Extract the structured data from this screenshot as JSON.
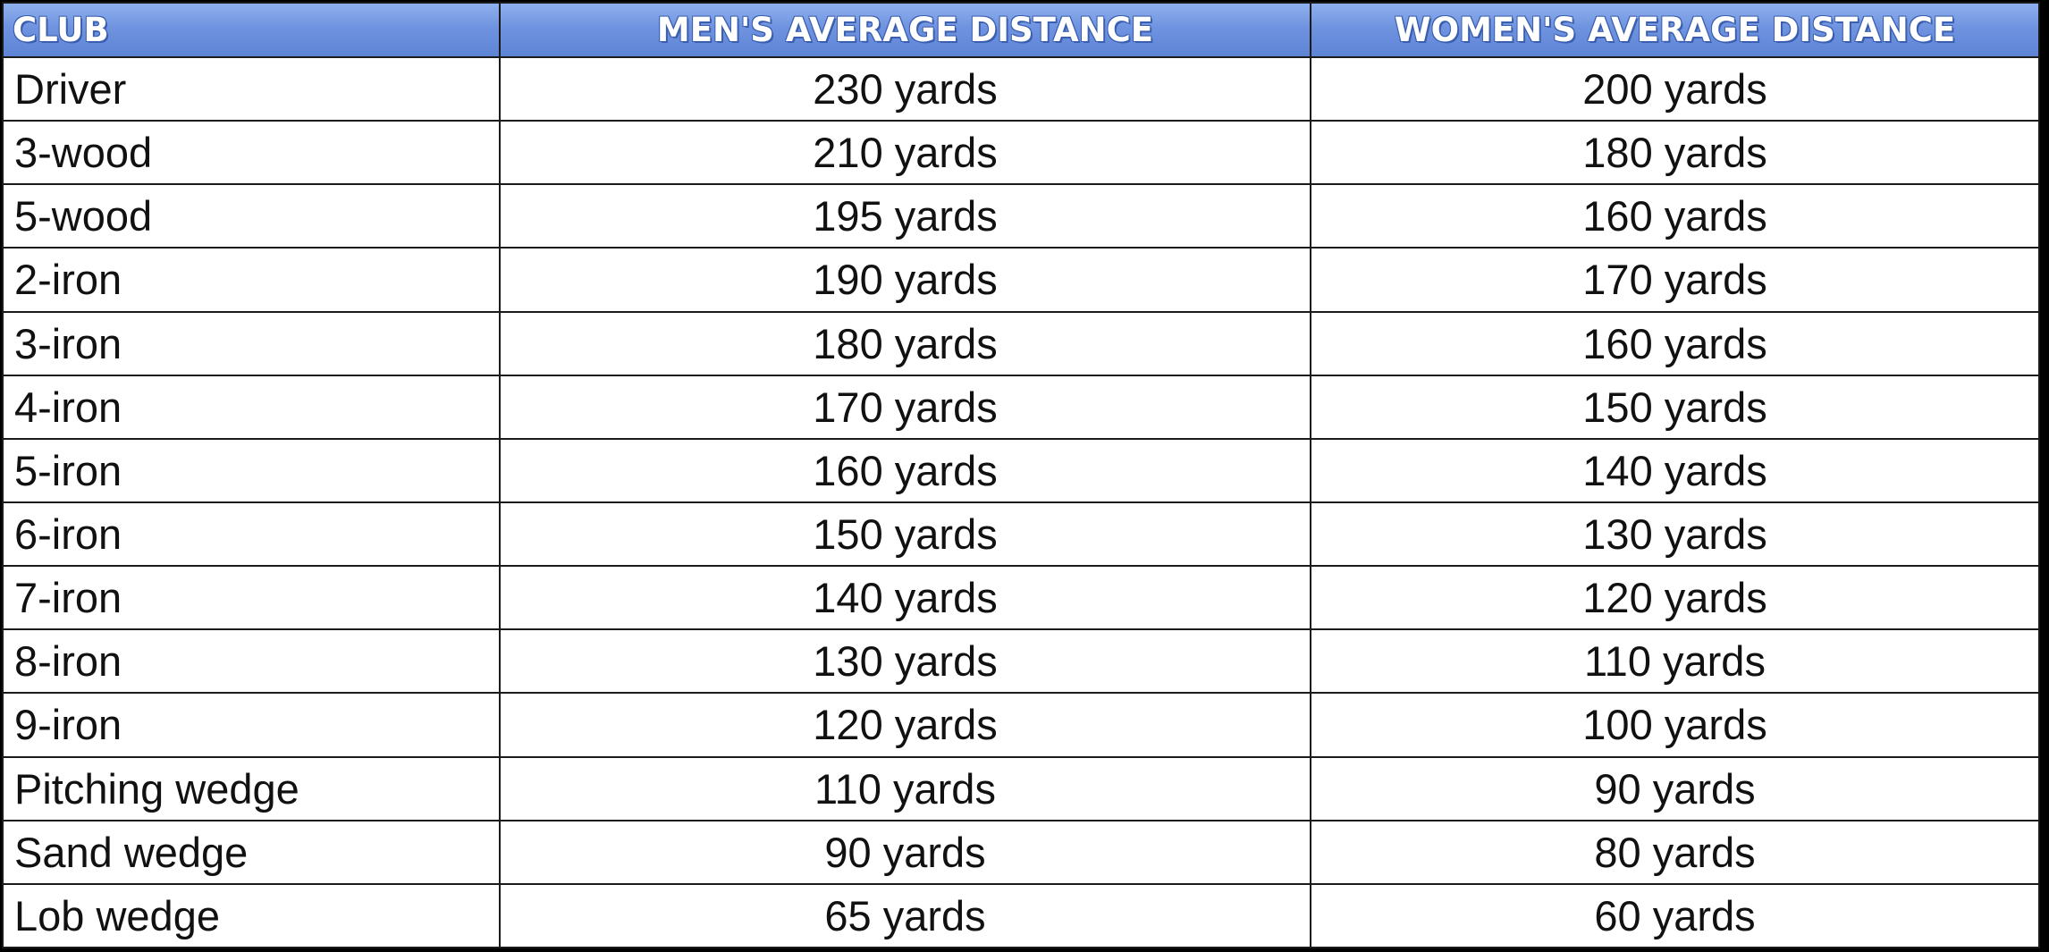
{
  "table": {
    "headers": {
      "club": "CLUB",
      "men": "MEN'S AVERAGE DISTANCE",
      "women": "WOMEN'S AVERAGE DISTANCE"
    },
    "rows": [
      {
        "club": "Driver",
        "men": "230 yards",
        "women": "200 yards"
      },
      {
        "club": "3-wood",
        "men": "210 yards",
        "women": "180 yards"
      },
      {
        "club": "5-wood",
        "men": "195 yards",
        "women": "160 yards"
      },
      {
        "club": "2-iron",
        "men": "190 yards",
        "women": "170 yards"
      },
      {
        "club": "3-iron",
        "men": "180 yards",
        "women": "160 yards"
      },
      {
        "club": "4-iron",
        "men": "170 yards",
        "women": "150 yards"
      },
      {
        "club": "5-iron",
        "men": "160 yards",
        "women": "140 yards"
      },
      {
        "club": "6-iron",
        "men": "150 yards",
        "women": "130 yards"
      },
      {
        "club": "7-iron",
        "men": "140 yards",
        "women": "120 yards"
      },
      {
        "club": "8-iron",
        "men": "130 yards",
        "women": "110 yards"
      },
      {
        "club": "9-iron",
        "men": "120 yards",
        "women": "100 yards"
      },
      {
        "club": "Pitching wedge",
        "men": "110 yards",
        "women": "90 yards"
      },
      {
        "club": "Sand wedge",
        "men": "90 yards",
        "women": "80 yards"
      },
      {
        "club": "Lob wedge",
        "men": "65 yards",
        "women": "60 yards"
      }
    ]
  },
  "colors": {
    "header_background": "#6f93df",
    "header_text": "#ffffff",
    "grid_lines": "#1a1a1a",
    "cell_background": "#ffffff"
  }
}
